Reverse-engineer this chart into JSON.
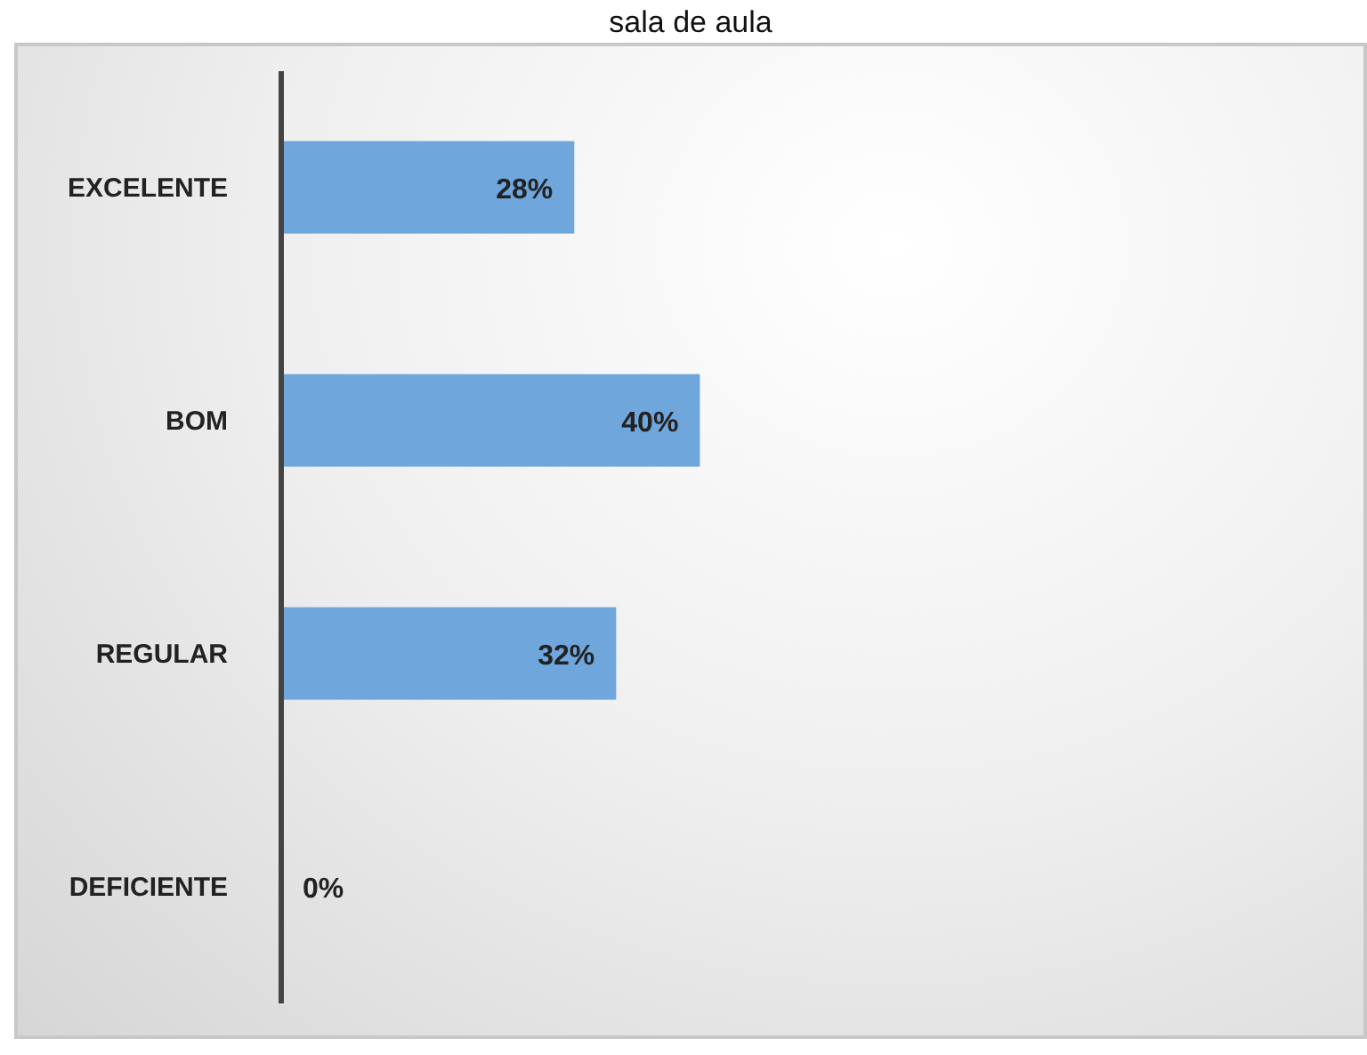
{
  "chart_data": {
    "type": "bar",
    "title": "sala de aula",
    "orientation": "horizontal",
    "categories": [
      "EXCELENTE",
      "BOM",
      "REGULAR",
      "DEFICIENTE"
    ],
    "values": [
      28,
      40,
      32,
      0
    ],
    "color": "#6fa6dc",
    "value_labels": [
      "28%",
      "40%",
      "32%",
      "0%"
    ],
    "tick_labels": "y"
  }
}
